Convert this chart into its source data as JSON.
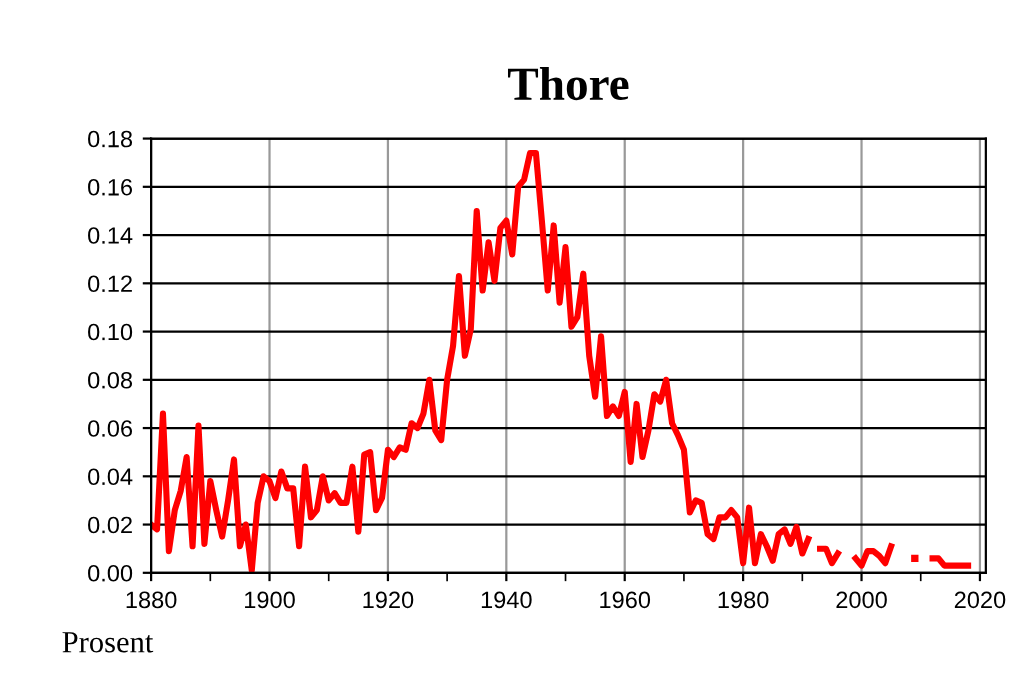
{
  "chart_data": {
    "type": "line",
    "title": "Thore",
    "ylabel": "Prosent",
    "x": [
      1880,
      1881,
      1882,
      1883,
      1884,
      1885,
      1886,
      1887,
      1888,
      1889,
      1890,
      1891,
      1892,
      1893,
      1894,
      1895,
      1896,
      1897,
      1898,
      1899,
      1900,
      1901,
      1902,
      1903,
      1904,
      1905,
      1906,
      1907,
      1908,
      1909,
      1910,
      1911,
      1912,
      1913,
      1914,
      1915,
      1916,
      1917,
      1918,
      1919,
      1920,
      1921,
      1922,
      1923,
      1924,
      1925,
      1926,
      1927,
      1928,
      1929,
      1930,
      1931,
      1932,
      1933,
      1934,
      1935,
      1936,
      1937,
      1938,
      1939,
      1940,
      1941,
      1942,
      1943,
      1944,
      1945,
      1946,
      1947,
      1948,
      1949,
      1950,
      1951,
      1952,
      1953,
      1954,
      1955,
      1956,
      1957,
      1958,
      1959,
      1960,
      1961,
      1962,
      1963,
      1964,
      1965,
      1966,
      1967,
      1968,
      1969,
      1970,
      1971,
      1972,
      1973,
      1974,
      1975,
      1976,
      1977,
      1978,
      1979,
      1980,
      1981,
      1982,
      1983,
      1984,
      1985,
      1986,
      1987,
      1988,
      1989,
      1990,
      1991,
      1992,
      1993,
      1994,
      1995,
      1996,
      1997,
      1998,
      1999,
      2000,
      2001,
      2002,
      2003,
      2004,
      2005,
      2006,
      2007,
      2008,
      2009,
      2010,
      2011,
      2012,
      2013,
      2014,
      2015,
      2016,
      2017,
      2018
    ],
    "series": [
      {
        "color": "#ff0000",
        "values": [
          0.02,
          0.018,
          0.066,
          0.009,
          0.026,
          0.034,
          0.048,
          0.011,
          0.061,
          0.012,
          0.038,
          0.026,
          0.015,
          0.03,
          0.047,
          0.011,
          0.02,
          0.001,
          0.029,
          0.04,
          0.038,
          0.031,
          0.042,
          0.035,
          0.035,
          0.011,
          0.044,
          0.023,
          0.026,
          0.04,
          0.03,
          0.033,
          0.029,
          0.029,
          0.044,
          0.017,
          0.049,
          0.05,
          0.026,
          0.031,
          0.051,
          0.048,
          0.052,
          0.051,
          0.062,
          0.06,
          0.066,
          0.08,
          0.059,
          0.055,
          0.08,
          0.094,
          0.123,
          0.09,
          0.101,
          0.15,
          0.117,
          0.137,
          0.121,
          0.143,
          0.146,
          0.132,
          0.16,
          0.163,
          0.174,
          0.174,
          0.146,
          0.117,
          0.144,
          0.112,
          0.135,
          0.102,
          0.106,
          0.124,
          0.09,
          0.073,
          0.098,
          0.065,
          0.069,
          0.065,
          0.075,
          0.046,
          0.07,
          0.048,
          0.059,
          0.074,
          0.071,
          0.08,
          0.062,
          0.057,
          0.051,
          0.025,
          0.03,
          0.029,
          0.016,
          0.014,
          0.023,
          0.023,
          0.026,
          0.023,
          0.004,
          0.027,
          0.004,
          0.016,
          0.011,
          0.005,
          0.016,
          0.018,
          0.012,
          0.019,
          0.008,
          0.014,
          null,
          0.01,
          0.01,
          0.004,
          0.008,
          null,
          null,
          0.006,
          0.003,
          0.009,
          0.009,
          0.007,
          0.004,
          0.011,
          null,
          null,
          null,
          null,
          null,
          null,
          0.006,
          0.006,
          0.003,
          0.003,
          0.003,
          0.003,
          0.003
        ]
      },
      {
        "type": "scatter",
        "marker": "square",
        "color": "#ff0000",
        "x": [
          2009
        ],
        "values": [
          0.006
        ]
      }
    ],
    "xlim": [
      1880,
      2021
    ],
    "xticks": [
      1880,
      {
        "value": 1890,
        "label": null
      },
      1900,
      {
        "value": 1910,
        "label": null
      },
      1920,
      {
        "value": 1930,
        "label": null
      },
      1940,
      {
        "value": 1950,
        "label": null
      },
      1960,
      {
        "value": 1970,
        "label": null
      },
      1980,
      {
        "value": 1990,
        "label": null
      },
      2000,
      {
        "value": 2010,
        "label": null
      },
      2020
    ],
    "ylim": [
      0,
      0.18
    ],
    "yticks": [
      {
        "value": 0,
        "label": "0.00"
      },
      {
        "value": 0.02,
        "label": "0.02"
      },
      {
        "value": 0.04,
        "label": "0.04"
      },
      {
        "value": 0.06,
        "label": "0.06"
      },
      {
        "value": 0.08,
        "label": "0.08"
      },
      {
        "value": 0.1,
        "label": "0.10"
      },
      {
        "value": 0.12,
        "label": "0.12"
      },
      {
        "value": 0.14,
        "label": "0.14"
      },
      {
        "value": 0.16,
        "label": "0.16"
      },
      {
        "value": 0.18,
        "label": "0.18"
      }
    ],
    "grid": true,
    "marker": "none",
    "line_style": "solid"
  }
}
